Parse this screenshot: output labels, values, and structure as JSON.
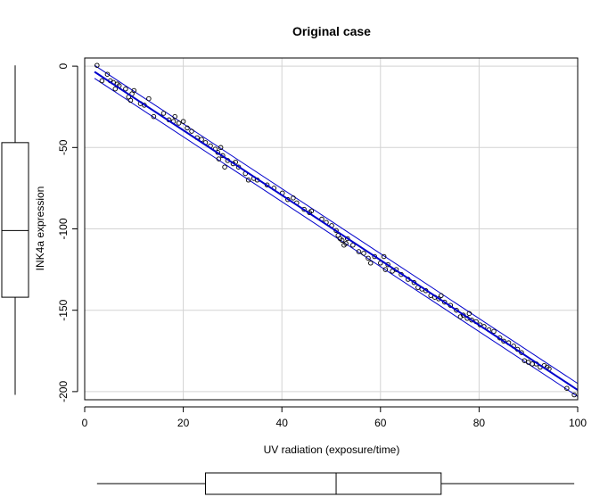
{
  "chart_data": {
    "type": "scatter",
    "title": "Original case",
    "xlabel": "UV radiation (exposure/time)",
    "ylabel": "INK4a expression",
    "xlim": [
      0,
      100
    ],
    "ylim": [
      -205,
      5
    ],
    "xticks": [
      0,
      20,
      40,
      60,
      80,
      100
    ],
    "yticks": [
      0,
      -50,
      -100,
      -150,
      -200
    ],
    "grid": true,
    "points": [
      [
        2.5,
        0.5
      ],
      [
        3.5,
        -9
      ],
      [
        4.6,
        -5
      ],
      [
        5.2,
        -9
      ],
      [
        5.8,
        -10
      ],
      [
        6.2,
        -14
      ],
      [
        6.6,
        -11
      ],
      [
        7.0,
        -12
      ],
      [
        8.3,
        -14
      ],
      [
        8.9,
        -19
      ],
      [
        9.3,
        -21
      ],
      [
        9.6,
        -17
      ],
      [
        10.0,
        -15
      ],
      [
        11.3,
        -23
      ],
      [
        12.1,
        -24
      ],
      [
        13.0,
        -20
      ],
      [
        14.0,
        -31
      ],
      [
        16.0,
        -29
      ],
      [
        17.1,
        -33
      ],
      [
        18.0,
        -34
      ],
      [
        18.3,
        -31
      ],
      [
        19.1,
        -35
      ],
      [
        20.0,
        -34
      ],
      [
        20.8,
        -38
      ],
      [
        21.7,
        -40
      ],
      [
        22.8,
        -44
      ],
      [
        23.7,
        -45
      ],
      [
        24.5,
        -47
      ],
      [
        25.5,
        -49
      ],
      [
        26.5,
        -51
      ],
      [
        27.0,
        -53
      ],
      [
        27.2,
        -57
      ],
      [
        27.6,
        -50
      ],
      [
        28.0,
        -55
      ],
      [
        28.4,
        -62
      ],
      [
        29.0,
        -58
      ],
      [
        30.1,
        -60
      ],
      [
        30.6,
        -59
      ],
      [
        31.2,
        -62
      ],
      [
        32.6,
        -66
      ],
      [
        33.2,
        -70
      ],
      [
        34.3,
        -69
      ],
      [
        35.0,
        -70
      ],
      [
        37.0,
        -73
      ],
      [
        38.4,
        -75
      ],
      [
        40.1,
        -78
      ],
      [
        41.2,
        -82
      ],
      [
        42.3,
        -81
      ],
      [
        43.0,
        -84
      ],
      [
        44.5,
        -88
      ],
      [
        45.6,
        -90
      ],
      [
        46.0,
        -89
      ],
      [
        48.1,
        -94
      ],
      [
        49.0,
        -96
      ],
      [
        50.1,
        -98
      ],
      [
        51.0,
        -101
      ],
      [
        51.4,
        -104
      ],
      [
        51.8,
        -106
      ],
      [
        52.2,
        -107
      ],
      [
        52.6,
        -110
      ],
      [
        53.0,
        -109
      ],
      [
        53.3,
        -106
      ],
      [
        54.4,
        -110
      ],
      [
        55.6,
        -114
      ],
      [
        56.6,
        -115
      ],
      [
        57.5,
        -118
      ],
      [
        58.0,
        -121
      ],
      [
        58.8,
        -117
      ],
      [
        60.0,
        -121
      ],
      [
        60.7,
        -117
      ],
      [
        61.0,
        -125
      ],
      [
        61.5,
        -122
      ],
      [
        62.4,
        -126
      ],
      [
        63.2,
        -125
      ],
      [
        64.2,
        -128
      ],
      [
        65.6,
        -131
      ],
      [
        66.8,
        -133
      ],
      [
        67.6,
        -136
      ],
      [
        68.4,
        -137
      ],
      [
        69.2,
        -138
      ],
      [
        70.2,
        -141
      ],
      [
        71.0,
        -142
      ],
      [
        71.8,
        -143
      ],
      [
        72.3,
        -141
      ],
      [
        73.0,
        -145
      ],
      [
        74.2,
        -147
      ],
      [
        75.4,
        -150
      ],
      [
        76.2,
        -154
      ],
      [
        76.8,
        -153
      ],
      [
        77.6,
        -155
      ],
      [
        78.0,
        -152
      ],
      [
        78.5,
        -156
      ],
      [
        79.4,
        -157
      ],
      [
        80.2,
        -159
      ],
      [
        81.0,
        -160
      ],
      [
        82.0,
        -162
      ],
      [
        83.0,
        -163
      ],
      [
        84.2,
        -167
      ],
      [
        85.0,
        -169
      ],
      [
        86.0,
        -170
      ],
      [
        87.0,
        -172
      ],
      [
        87.8,
        -174
      ],
      [
        88.6,
        -176
      ],
      [
        89.2,
        -181
      ],
      [
        90.0,
        -182
      ],
      [
        90.8,
        -183
      ],
      [
        91.6,
        -183
      ],
      [
        92.4,
        -185
      ],
      [
        93.2,
        -184
      ],
      [
        93.8,
        -185
      ],
      [
        94.2,
        -186
      ],
      [
        97.8,
        -198
      ],
      [
        99.3,
        -202
      ]
    ],
    "fit_line": [
      [
        2,
        -3.5
      ],
      [
        100,
        -199
      ]
    ],
    "band_halfwidth": 4,
    "point_color": "#000000",
    "line_color": "#0000cc",
    "band_color": "#0000cc",
    "marginal_boxplots": {
      "x": {
        "min": 2.5,
        "q1": 24.5,
        "median": 51.0,
        "q3": 72.3,
        "max": 99.3
      },
      "y": {
        "min": -202,
        "q1": -142,
        "median": -101,
        "q3": -47,
        "max": 0.5
      }
    }
  }
}
